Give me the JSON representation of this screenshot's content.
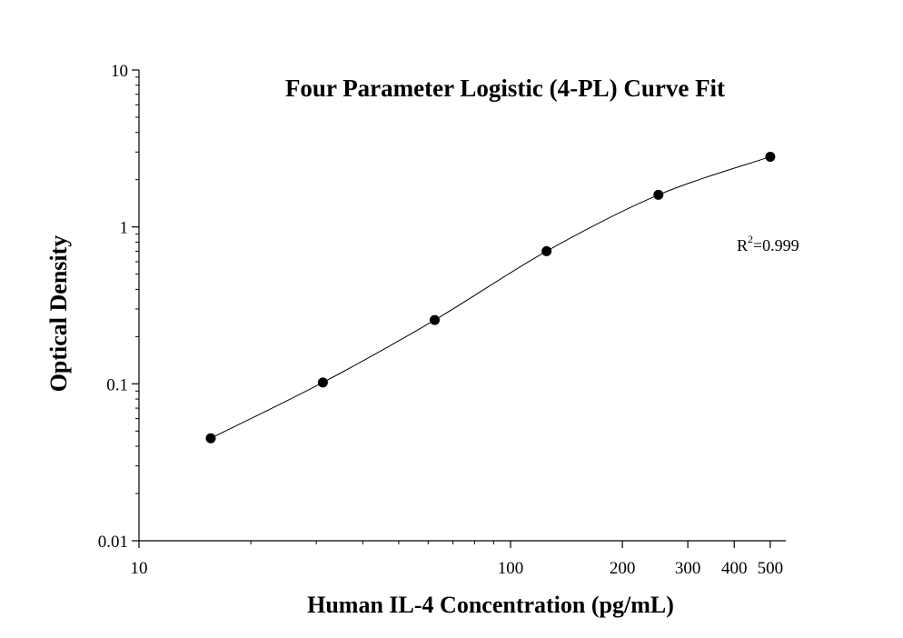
{
  "chart_data": {
    "type": "scatter",
    "title": "Four Parameter Logistic (4-PL) Curve Fit",
    "xlabel": "Human IL-4  Concentration (pg/mL)",
    "ylabel": "Optical Density",
    "x_scale": "log",
    "y_scale": "log",
    "xlim": [
      10,
      520
    ],
    "ylim": [
      0.01,
      10
    ],
    "x_ticks": [
      {
        "value": 10,
        "label": "10"
      },
      {
        "value": 100,
        "label": "100"
      },
      {
        "value": 200,
        "label": "200"
      },
      {
        "value": 300,
        "label": "300"
      },
      {
        "value": 400,
        "label": "400"
      },
      {
        "value": 500,
        "label": "500"
      }
    ],
    "y_ticks": [
      {
        "value": 0.01,
        "label": "0.01"
      },
      {
        "value": 0.1,
        "label": "0.1"
      },
      {
        "value": 1,
        "label": "1"
      },
      {
        "value": 10,
        "label": "10"
      }
    ],
    "series": [
      {
        "x": [
          15.6,
          31.25,
          62.5,
          125,
          250,
          500
        ],
        "y": [
          0.045,
          0.102,
          0.255,
          0.7,
          1.6,
          2.8
        ]
      }
    ],
    "fit_curve": "4-PL",
    "grid": false,
    "annotation": {
      "r_squared_base": "R",
      "r_squared_exp": "2",
      "r_squared_value": "=0.999"
    }
  }
}
